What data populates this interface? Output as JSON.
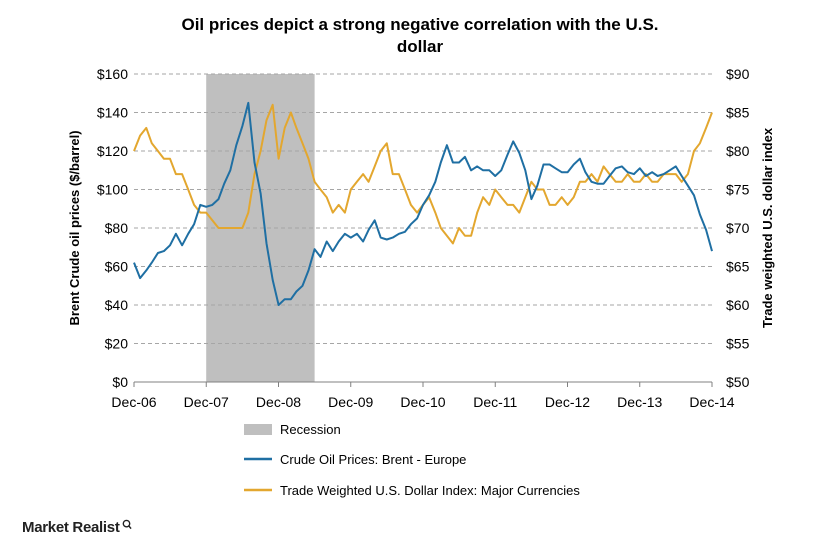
{
  "chart_data": {
    "type": "line",
    "title": "Oil prices depict a strong negative correlation with the U.S. dollar",
    "title_lines": [
      "Oil prices depict a strong negative correlation with the U.S.",
      "dollar"
    ],
    "ylabel": "Brent Crude oil prices ($/barrel)",
    "y2label": "Trade weighted U.S. dollar index",
    "x_ticks": [
      "Dec-06",
      "Dec-07",
      "Dec-08",
      "Dec-09",
      "Dec-10",
      "Dec-11",
      "Dec-12",
      "Dec-13",
      "Dec-14"
    ],
    "y_ticks": [
      "$0",
      "$20",
      "$40",
      "$60",
      "$80",
      "$100",
      "$120",
      "$140",
      "$160"
    ],
    "y2_ticks": [
      "$50",
      "$55",
      "$60",
      "$65",
      "$70",
      "$75",
      "$80",
      "$85",
      "$90"
    ],
    "ylim": [
      0,
      160
    ],
    "y2lim": [
      50,
      90
    ],
    "grid": "horizontal-dashed",
    "legend_position": "bottom",
    "recession": {
      "name": "Recession",
      "start": "2007-12",
      "end": "2009-06",
      "color": "#bfbfbf"
    },
    "series": [
      {
        "name": "Crude Oil Prices: Brent - Europe",
        "axis": "left",
        "color": "#1f6fa3",
        "x": [
          "2006-12",
          "2007-01",
          "2007-02",
          "2007-03",
          "2007-04",
          "2007-05",
          "2007-06",
          "2007-07",
          "2007-08",
          "2007-09",
          "2007-10",
          "2007-11",
          "2007-12",
          "2008-01",
          "2008-02",
          "2008-03",
          "2008-04",
          "2008-05",
          "2008-06",
          "2008-07",
          "2008-08",
          "2008-09",
          "2008-10",
          "2008-11",
          "2008-12",
          "2009-01",
          "2009-02",
          "2009-03",
          "2009-04",
          "2009-05",
          "2009-06",
          "2009-07",
          "2009-08",
          "2009-09",
          "2009-10",
          "2009-11",
          "2009-12",
          "2010-01",
          "2010-02",
          "2010-03",
          "2010-04",
          "2010-05",
          "2010-06",
          "2010-07",
          "2010-08",
          "2010-09",
          "2010-10",
          "2010-11",
          "2010-12",
          "2011-01",
          "2011-02",
          "2011-03",
          "2011-04",
          "2011-05",
          "2011-06",
          "2011-07",
          "2011-08",
          "2011-09",
          "2011-10",
          "2011-11",
          "2011-12",
          "2012-01",
          "2012-02",
          "2012-03",
          "2012-04",
          "2012-05",
          "2012-06",
          "2012-07",
          "2012-08",
          "2012-09",
          "2012-10",
          "2012-11",
          "2012-12",
          "2013-01",
          "2013-02",
          "2013-03",
          "2013-04",
          "2013-05",
          "2013-06",
          "2013-07",
          "2013-08",
          "2013-09",
          "2013-10",
          "2013-11",
          "2013-12",
          "2014-01",
          "2014-02",
          "2014-03",
          "2014-04",
          "2014-05",
          "2014-06",
          "2014-07",
          "2014-08",
          "2014-09",
          "2014-10",
          "2014-11",
          "2014-12"
        ],
        "values": [
          62,
          54,
          58,
          62,
          67,
          68,
          71,
          77,
          71,
          77,
          82,
          92,
          91,
          92,
          95,
          103,
          110,
          123,
          133,
          145,
          114,
          98,
          72,
          53,
          40,
          43,
          43,
          47,
          50,
          58,
          69,
          65,
          73,
          68,
          73,
          77,
          75,
          77,
          73,
          79,
          84,
          75,
          74,
          75,
          77,
          78,
          82,
          85,
          92,
          97,
          104,
          114,
          123,
          114,
          114,
          117,
          110,
          112,
          110,
          110,
          107,
          110,
          118,
          125,
          119,
          110,
          95,
          102,
          113,
          113,
          111,
          109,
          109,
          113,
          116,
          109,
          104,
          103,
          103,
          107,
          111,
          112,
          109,
          108,
          111,
          107,
          109,
          107,
          108,
          110,
          112,
          107,
          102,
          97,
          87,
          79,
          68
        ]
      },
      {
        "name": "Trade Weighted U.S. Dollar Index: Major Currencies",
        "axis": "right",
        "color": "#e3a72f",
        "x": [
          "2006-12",
          "2007-01",
          "2007-02",
          "2007-03",
          "2007-04",
          "2007-05",
          "2007-06",
          "2007-07",
          "2007-08",
          "2007-09",
          "2007-10",
          "2007-11",
          "2007-12",
          "2008-01",
          "2008-02",
          "2008-03",
          "2008-04",
          "2008-05",
          "2008-06",
          "2008-07",
          "2008-08",
          "2008-09",
          "2008-10",
          "2008-11",
          "2008-12",
          "2009-01",
          "2009-02",
          "2009-03",
          "2009-04",
          "2009-05",
          "2009-06",
          "2009-07",
          "2009-08",
          "2009-09",
          "2009-10",
          "2009-11",
          "2009-12",
          "2010-01",
          "2010-02",
          "2010-03",
          "2010-04",
          "2010-05",
          "2010-06",
          "2010-07",
          "2010-08",
          "2010-09",
          "2010-10",
          "2010-11",
          "2010-12",
          "2011-01",
          "2011-02",
          "2011-03",
          "2011-04",
          "2011-05",
          "2011-06",
          "2011-07",
          "2011-08",
          "2011-09",
          "2011-10",
          "2011-11",
          "2011-12",
          "2012-01",
          "2012-02",
          "2012-03",
          "2012-04",
          "2012-05",
          "2012-06",
          "2012-07",
          "2012-08",
          "2012-09",
          "2012-10",
          "2012-11",
          "2012-12",
          "2013-01",
          "2013-02",
          "2013-03",
          "2013-04",
          "2013-05",
          "2013-06",
          "2013-07",
          "2013-08",
          "2013-09",
          "2013-10",
          "2013-11",
          "2013-12",
          "2014-01",
          "2014-02",
          "2014-03",
          "2014-04",
          "2014-05",
          "2014-06",
          "2014-07",
          "2014-08",
          "2014-09",
          "2014-10",
          "2014-11",
          "2014-12"
        ],
        "values": [
          80,
          82,
          83,
          81,
          80,
          79,
          79,
          77,
          77,
          75,
          73,
          72,
          72,
          71,
          70,
          70,
          70,
          70,
          70,
          72,
          77,
          80,
          84,
          86,
          79,
          83,
          85,
          83,
          81,
          79,
          76,
          75,
          74,
          72,
          73,
          72,
          75,
          76,
          77,
          76,
          78,
          80,
          81,
          77,
          77,
          75,
          73,
          72,
          73,
          74,
          72,
          70,
          69,
          68,
          70,
          69,
          69,
          72,
          74,
          73,
          75,
          74,
          73,
          73,
          72,
          74,
          76,
          75,
          75,
          73,
          73,
          74,
          73,
          74,
          76,
          76,
          77,
          76,
          78,
          77,
          76,
          76,
          77,
          76,
          76,
          77,
          76,
          76,
          77,
          77,
          77,
          76,
          77,
          80,
          81,
          83,
          85
        ]
      }
    ]
  },
  "legend": {
    "recession": "Recession",
    "brent": "Crude Oil Prices: Brent - Europe",
    "usd": "Trade Weighted U.S. Dollar Index: Major Currencies"
  },
  "brand": {
    "text": "Market Realist",
    "icon": "magnifier-icon"
  }
}
